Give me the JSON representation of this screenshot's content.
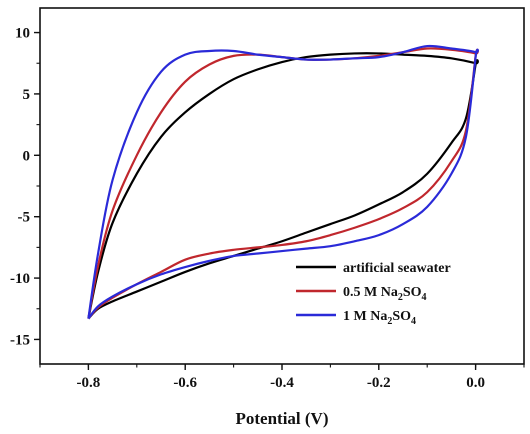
{
  "chart_data": {
    "type": "line",
    "title": "",
    "xlabel": "Potential (V)",
    "ylabel": "",
    "xlim": [
      -0.9,
      0.1
    ],
    "ylim": [
      -17,
      12
    ],
    "xticks": [
      -0.8,
      -0.6,
      -0.4,
      -0.2,
      0.0
    ],
    "xtick_labels": [
      "-0.8",
      "-0.6",
      "-0.4",
      "-0.2",
      "0.0"
    ],
    "yticks": [
      -15,
      -10,
      -5,
      0,
      5,
      10
    ],
    "ytick_labels": [
      "-15",
      "-10",
      "-5",
      "0",
      "5",
      "10"
    ],
    "grid": false,
    "legend_position": "bottom-right",
    "series": [
      {
        "name": "artificial seawater",
        "legend_parts": [
          {
            "text": "artificial seawater",
            "sub": ""
          }
        ],
        "color": "#000000",
        "x": [
          -0.8,
          -0.78,
          -0.75,
          -0.7,
          -0.65,
          -0.6,
          -0.55,
          -0.5,
          -0.45,
          -0.4,
          -0.35,
          -0.3,
          -0.25,
          -0.2,
          -0.15,
          -0.1,
          -0.05,
          0.0,
          0.0,
          -0.02,
          -0.05,
          -0.1,
          -0.15,
          -0.2,
          -0.25,
          -0.3,
          -0.35,
          -0.4,
          -0.45,
          -0.5,
          -0.55,
          -0.6,
          -0.65,
          -0.7,
          -0.75,
          -0.78,
          -0.8
        ],
        "y": [
          -13.3,
          -9.5,
          -5.5,
          -1.5,
          1.5,
          3.5,
          5.0,
          6.2,
          7.0,
          7.6,
          8.0,
          8.2,
          8.3,
          8.3,
          8.2,
          8.1,
          7.9,
          7.5,
          7.4,
          3.0,
          1.0,
          -1.5,
          -3.0,
          -4.0,
          -4.9,
          -5.6,
          -6.3,
          -7.0,
          -7.6,
          -8.2,
          -8.8,
          -9.5,
          -10.3,
          -11.1,
          -11.9,
          -12.5,
          -13.3
        ]
      },
      {
        "name": "0.5 M Na2SO4",
        "legend_parts": [
          {
            "text": "0.5 M Na",
            "sub": ""
          },
          {
            "text": "2",
            "sub": "sub"
          },
          {
            "text": "SO",
            "sub": ""
          },
          {
            "text": "4",
            "sub": "sub"
          }
        ],
        "color": "#c0272d",
        "x": [
          -0.8,
          -0.78,
          -0.75,
          -0.7,
          -0.65,
          -0.6,
          -0.55,
          -0.5,
          -0.45,
          -0.4,
          -0.35,
          -0.3,
          -0.25,
          -0.2,
          -0.15,
          -0.1,
          -0.05,
          0.0,
          0.0,
          -0.02,
          -0.05,
          -0.1,
          -0.15,
          -0.2,
          -0.25,
          -0.3,
          -0.35,
          -0.4,
          -0.45,
          -0.5,
          -0.55,
          -0.6,
          -0.65,
          -0.7,
          -0.75,
          -0.78,
          -0.8
        ],
        "y": [
          -13.3,
          -9.0,
          -4.5,
          0.0,
          3.5,
          6.0,
          7.4,
          8.1,
          8.2,
          8.0,
          7.8,
          7.8,
          7.9,
          8.1,
          8.4,
          8.7,
          8.6,
          8.3,
          8.1,
          2.0,
          -0.5,
          -3.0,
          -4.3,
          -5.2,
          -5.9,
          -6.5,
          -7.0,
          -7.3,
          -7.5,
          -7.7,
          -8.0,
          -8.5,
          -9.5,
          -10.5,
          -11.6,
          -12.4,
          -13.3
        ]
      },
      {
        "name": "1 M Na2SO4",
        "legend_parts": [
          {
            "text": "1 M Na",
            "sub": ""
          },
          {
            "text": "2",
            "sub": "sub"
          },
          {
            "text": "SO",
            "sub": ""
          },
          {
            "text": "4",
            "sub": "sub"
          }
        ],
        "color": "#2a2ad8",
        "x": [
          -0.8,
          -0.78,
          -0.75,
          -0.7,
          -0.65,
          -0.6,
          -0.55,
          -0.5,
          -0.45,
          -0.4,
          -0.35,
          -0.3,
          -0.25,
          -0.2,
          -0.15,
          -0.1,
          -0.05,
          0.0,
          0.0,
          -0.02,
          -0.05,
          -0.1,
          -0.15,
          -0.2,
          -0.25,
          -0.3,
          -0.35,
          -0.4,
          -0.45,
          -0.5,
          -0.55,
          -0.6,
          -0.65,
          -0.7,
          -0.75,
          -0.78,
          -0.8
        ],
        "y": [
          -13.3,
          -8.0,
          -2.0,
          3.5,
          6.8,
          8.2,
          8.5,
          8.5,
          8.2,
          8.0,
          7.8,
          7.8,
          7.9,
          8.0,
          8.4,
          8.9,
          8.7,
          8.4,
          8.0,
          1.5,
          -1.5,
          -4.2,
          -5.6,
          -6.5,
          -7.0,
          -7.4,
          -7.6,
          -7.8,
          -8.0,
          -8.2,
          -8.6,
          -9.1,
          -9.7,
          -10.5,
          -11.5,
          -12.3,
          -13.3
        ]
      }
    ]
  }
}
